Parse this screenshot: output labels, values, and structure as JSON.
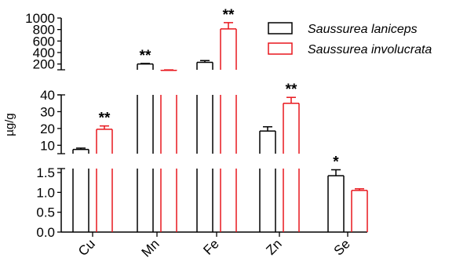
{
  "chart_data": {
    "type": "bar",
    "title": "",
    "ylabel": "µg/g",
    "xlabel": "",
    "categories": [
      "Cu",
      "Mn",
      "Fe",
      "Zn",
      "Se"
    ],
    "axis_breaks": true,
    "segments": [
      {
        "range": [
          0,
          1.6
        ],
        "ticks": [
          "0.0",
          "0.5",
          "1.0",
          "1.5"
        ]
      },
      {
        "range": [
          5,
          40
        ],
        "ticks": [
          "10",
          "20",
          "30",
          "40"
        ]
      },
      {
        "range": [
          100,
          1000
        ],
        "ticks": [
          "200",
          "400",
          "600",
          "800",
          "1000"
        ]
      }
    ],
    "legend_position": "top-right",
    "series": [
      {
        "name": "Saussurea laniceps",
        "color": "#000000",
        "values": [
          7.5,
          200,
          230,
          18.5,
          1.42
        ],
        "errors": [
          0.8,
          10,
          30,
          2.5,
          0.15
        ],
        "significance": [
          "",
          "**",
          "",
          "",
          "*"
        ]
      },
      {
        "name": "Saussurea involucrata",
        "color": "#e8171d",
        "values": [
          19.5,
          90,
          810,
          35,
          1.05
        ],
        "errors": [
          2,
          8,
          110,
          3.5,
          0.04
        ],
        "significance": [
          "**",
          "",
          "**",
          "**",
          ""
        ]
      }
    ]
  }
}
